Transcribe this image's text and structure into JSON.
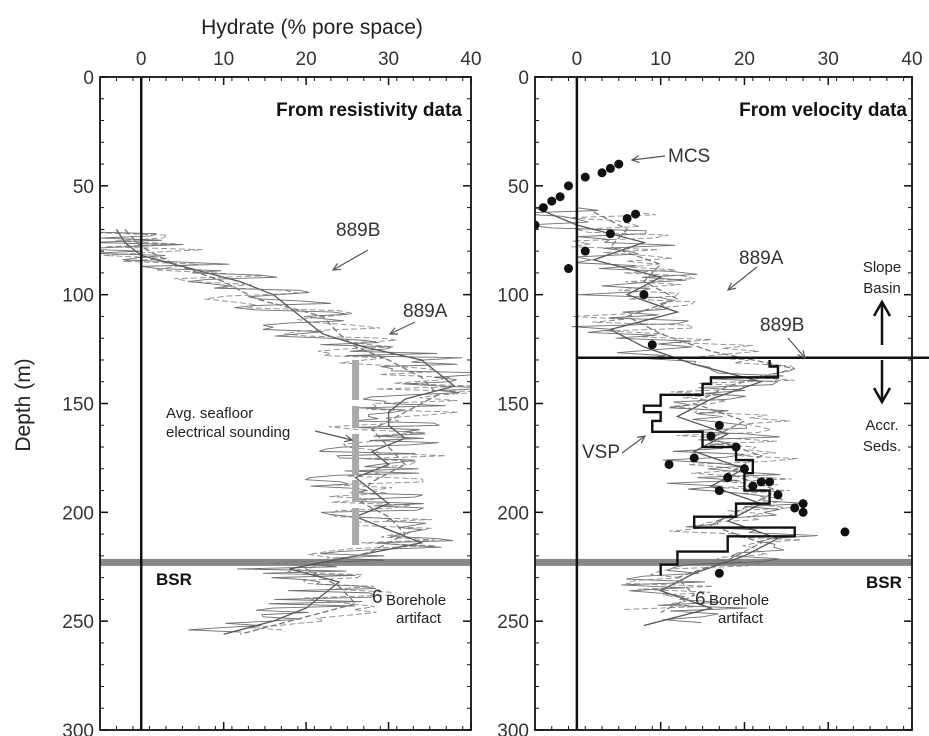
{
  "chart_data": [
    {
      "type": "line",
      "panel_title": "From resistivity data",
      "xlabel": "Hydrate (% pore space)",
      "ylabel": "Depth (m)",
      "xlim": [
        -5,
        40
      ],
      "ylim": [
        300,
        0
      ],
      "x_ticks": [
        "0",
        "10",
        "20",
        "30",
        "40"
      ],
      "y_ticks": [
        "0",
        "50",
        "100",
        "150",
        "200",
        "250",
        "300"
      ],
      "series": [
        {
          "name": "889B",
          "style": "solid",
          "depth": [
            70,
            76,
            82,
            88,
            94,
            100,
            106,
            112,
            118,
            124,
            130,
            136,
            142,
            148,
            154,
            160,
            166,
            172,
            178,
            184,
            190,
            196,
            202,
            208,
            214,
            220,
            226,
            232,
            238,
            244,
            250,
            256
          ],
          "hydrate": [
            -3,
            -2,
            0,
            6,
            12,
            16,
            18,
            20,
            22,
            27,
            34,
            36,
            38,
            32,
            30,
            30,
            32,
            28,
            30,
            26,
            28,
            30,
            26,
            30,
            34,
            26,
            18,
            24,
            22,
            20,
            16,
            10
          ]
        },
        {
          "name": "889A",
          "style": "dashed",
          "depth": [
            70,
            78,
            86,
            94,
            102,
            110,
            118,
            124,
            130,
            138,
            146,
            154,
            162,
            170,
            178,
            186,
            194,
            202,
            210,
            218,
            226,
            234,
            242,
            250,
            256
          ],
          "hydrate": [
            -2,
            0,
            4,
            10,
            14,
            22,
            24,
            26,
            30,
            34,
            36,
            32,
            28,
            30,
            32,
            28,
            26,
            30,
            32,
            28,
            20,
            24,
            26,
            18,
            12
          ]
        }
      ],
      "reference_line": {
        "label": "Avg. seafloor electrical sounding",
        "hydrate": 26,
        "depth_range": [
          130,
          215
        ]
      },
      "bsr_depth": 223,
      "bsr_label": "BSR",
      "artifact_label": "Borehole artifact",
      "artifact_symbol": "6",
      "annotations": [
        "889B",
        "889A"
      ]
    },
    {
      "type": "line",
      "panel_title": "From velocity data",
      "xlabel": "",
      "ylabel": "",
      "xlim": [
        -5,
        40
      ],
      "ylim": [
        300,
        0
      ],
      "x_ticks": [
        "0",
        "10",
        "20",
        "30",
        "40"
      ],
      "y_ticks": [
        "0",
        "50",
        "100",
        "150",
        "200",
        "250",
        "300"
      ],
      "series": [
        {
          "name": "889A",
          "style": "solid",
          "depth": [
            60,
            68,
            76,
            84,
            92,
            100,
            108,
            116,
            124,
            132,
            140,
            148,
            156,
            164,
            172,
            180,
            188,
            196,
            204,
            212,
            220,
            228,
            236,
            244,
            252
          ],
          "hydrate": [
            -5,
            0,
            8,
            2,
            10,
            6,
            12,
            4,
            8,
            14,
            22,
            16,
            12,
            18,
            14,
            20,
            16,
            22,
            18,
            24,
            20,
            14,
            10,
            16,
            8
          ]
        },
        {
          "name": "889B",
          "style": "dashed",
          "depth": [
            62,
            70,
            78,
            86,
            94,
            102,
            110,
            118,
            126,
            134,
            142,
            150,
            158,
            166,
            174,
            182,
            190,
            198,
            206,
            214,
            222,
            230,
            238,
            246
          ],
          "hydrate": [
            2,
            6,
            4,
            10,
            8,
            12,
            6,
            10,
            16,
            26,
            18,
            14,
            20,
            16,
            22,
            18,
            24,
            20,
            16,
            22,
            18,
            12,
            14,
            10
          ]
        },
        {
          "name": "VSP",
          "style": "step",
          "depth": [
            130,
            133,
            133,
            138,
            138,
            141,
            141,
            146,
            146,
            151,
            151,
            154,
            154,
            158,
            158,
            163,
            163,
            170,
            170,
            176,
            176,
            182,
            182,
            190,
            190,
            196,
            196,
            202,
            202,
            207,
            207,
            211,
            211,
            218,
            218,
            224,
            224,
            229
          ],
          "hydrate": [
            23,
            23,
            24,
            24,
            16,
            16,
            15,
            15,
            10,
            10,
            8,
            8,
            10,
            10,
            9,
            9,
            15,
            15,
            19,
            19,
            21,
            21,
            20,
            20,
            23,
            23,
            19,
            19,
            14,
            14,
            26,
            26,
            18,
            18,
            12,
            12,
            10,
            10
          ]
        }
      ],
      "points": {
        "name": "MCS",
        "depth": [
          40,
          42,
          44,
          46,
          50,
          55,
          57,
          60,
          63,
          65,
          68,
          72,
          80,
          88,
          100,
          123,
          160,
          165,
          170,
          175,
          178,
          180,
          184,
          186,
          186,
          188,
          190,
          192,
          196,
          198,
          200,
          209,
          228
        ],
        "hydrate": [
          5,
          4,
          3,
          1,
          -1,
          -2,
          -3,
          -4,
          7,
          6,
          -5,
          4,
          1,
          -1,
          8,
          9,
          17,
          16,
          19,
          14,
          11,
          20,
          18,
          22,
          23,
          21,
          17,
          24,
          27,
          26,
          27,
          32,
          17
        ]
      },
      "reference_line": {
        "label": "Slope Basin / Accr. Seds. boundary",
        "depth": 129
      },
      "bsr_depth": 223,
      "bsr_label": "BSR",
      "artifact_label": "Borehole artifact",
      "artifact_symbol": "6",
      "annotations": [
        "MCS",
        "889A",
        "889B",
        "VSP"
      ],
      "side_labels": {
        "upper": "Slope Basin",
        "lower": "Accr. Seds."
      }
    }
  ],
  "text": {
    "x_title": "Hydrate (% pore space)",
    "y_title": "Depth (m)",
    "left_panel_title": "From resistivity data",
    "right_panel_title": "From velocity data",
    "sounding_line1": "Avg. seafloor",
    "sounding_line2": "electrical sounding",
    "bsr": "BSR",
    "artifact_symbol": "6",
    "artifact_line1": "Borehole",
    "artifact_line2": "artifact",
    "lbl_889b_left": "889B",
    "lbl_889a_left": "889A",
    "lbl_mcs": "MCS",
    "lbl_889a_right": "889A",
    "lbl_889b_right": "889B",
    "lbl_vsp": "VSP",
    "slope_line1": "Slope",
    "slope_line2": "Basin",
    "accr_line1": "Accr.",
    "accr_line2": "Seds."
  },
  "colors": {
    "frame": "#111111",
    "log_889a": "#555555",
    "log_889b": "#777777",
    "bsr_band": "#888888",
    "sounding": "#aaaaaa",
    "points": "#111111"
  }
}
